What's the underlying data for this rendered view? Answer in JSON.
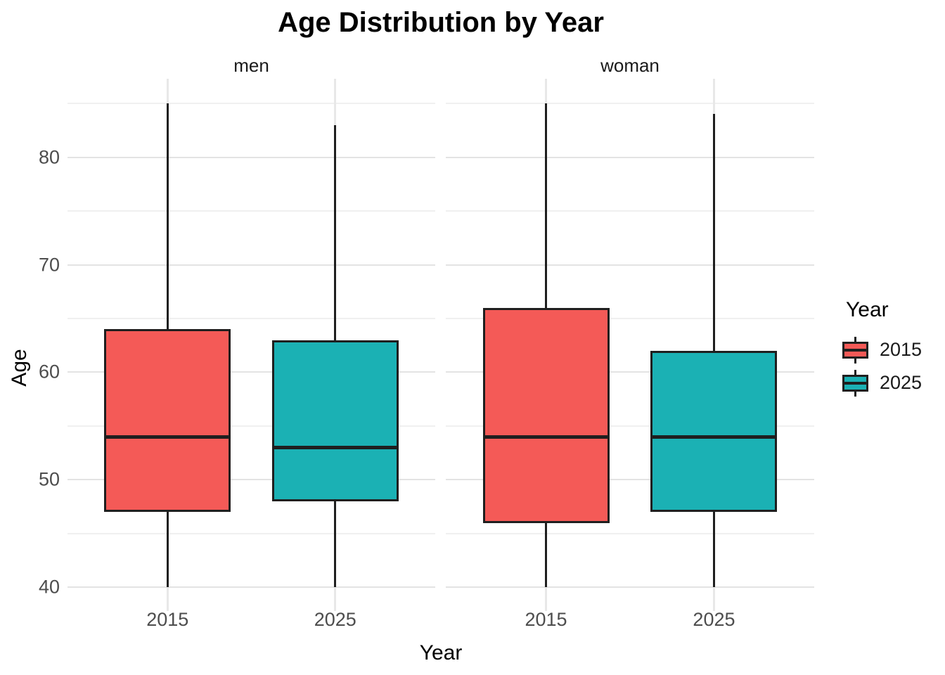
{
  "title": "Age Distribution by Year",
  "axes": {
    "x_title": "Year",
    "y_title": "Age",
    "y_tick_labels": [
      "40",
      "50",
      "60",
      "70",
      "80"
    ],
    "x_tick_labels": [
      "2015",
      "2025"
    ]
  },
  "legend": {
    "title": "Year",
    "items": [
      {
        "label": "2015",
        "color": "#F45A57"
      },
      {
        "label": "2025",
        "color": "#1BB1B4"
      }
    ]
  },
  "style": {
    "box_stroke": "#1f1f1f",
    "major_grid": "#e3e3e3",
    "minor_grid": "#f0f0f0",
    "vertical_grid": "#e8e8e8",
    "tick_text": "#4d4d4d"
  },
  "chart_data": {
    "type": "boxplot",
    "title": "Age Distribution by Year",
    "xlabel": "Year",
    "ylabel": "Age",
    "ylim": [
      37.8,
      87.3
    ],
    "y_major_ticks": [
      40,
      50,
      60,
      70,
      80
    ],
    "y_minor_ticks": [
      45,
      55,
      65,
      75,
      85
    ],
    "grid": true,
    "legend_position": "right",
    "legend_title": "Year",
    "facets": [
      {
        "label": "men",
        "groups": [
          {
            "x": "2015",
            "series": "2015",
            "color": "#F45A57",
            "min": 40,
            "q1": 47,
            "median": 54,
            "q3": 64,
            "max": 85
          },
          {
            "x": "2025",
            "series": "2025",
            "color": "#1BB1B4",
            "min": 40,
            "q1": 48,
            "median": 53,
            "q3": 63,
            "max": 83
          }
        ]
      },
      {
        "label": "woman",
        "groups": [
          {
            "x": "2015",
            "series": "2015",
            "color": "#F45A57",
            "min": 40,
            "q1": 46,
            "median": 54,
            "q3": 66,
            "max": 85
          },
          {
            "x": "2025",
            "series": "2025",
            "color": "#1BB1B4",
            "min": 40,
            "q1": 47,
            "median": 54,
            "q3": 62,
            "max": 84
          }
        ]
      }
    ]
  }
}
